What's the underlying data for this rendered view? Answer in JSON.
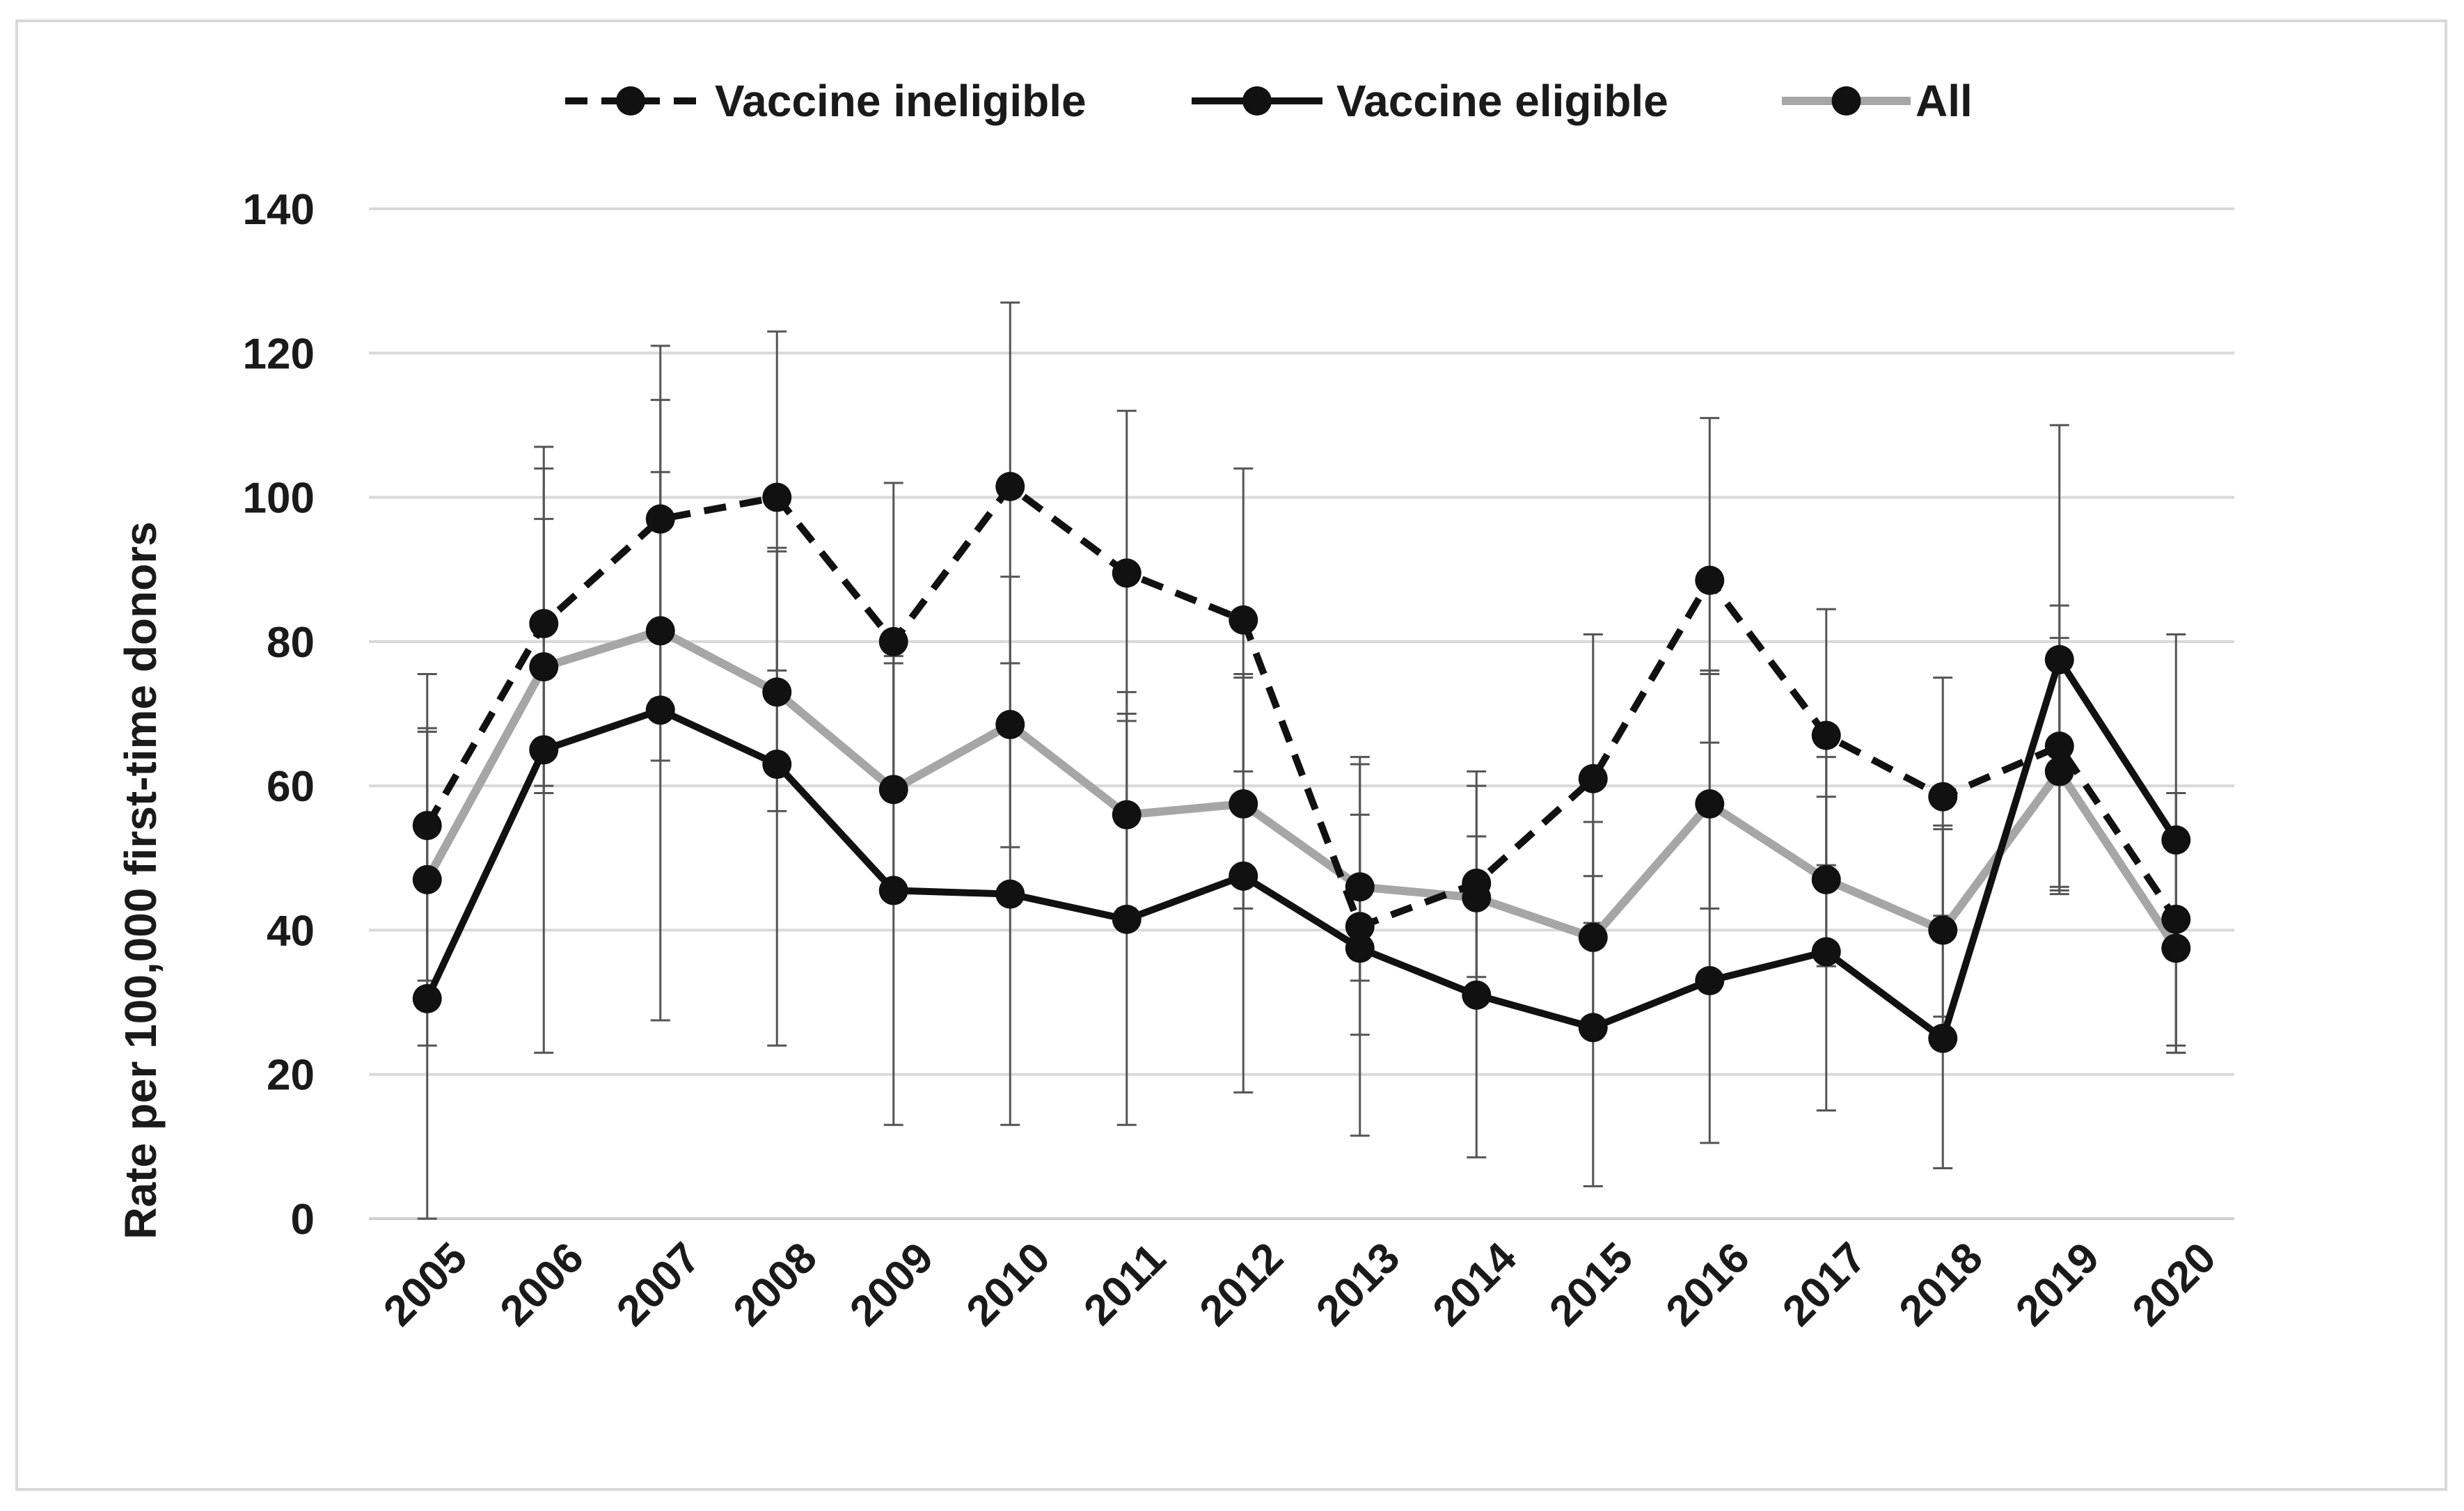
{
  "chart_data": {
    "type": "line",
    "title": "",
    "xlabel": "",
    "ylabel": "Rate per 100,000 first-time donors",
    "ylim": [
      0,
      140
    ],
    "yticks": [
      0,
      20,
      40,
      60,
      80,
      100,
      120,
      140
    ],
    "grid": true,
    "legend_position": "top-center",
    "categories": [
      "2005",
      "2006",
      "2007",
      "2008",
      "2009",
      "2010",
      "2011",
      "2012",
      "2013",
      "2014",
      "2015",
      "2016",
      "2017",
      "2018",
      "2019",
      "2020"
    ],
    "series": [
      {
        "name": "Vaccine ineligible",
        "style": "dashed",
        "color": "#111111",
        "values": [
          54.5,
          82.5,
          97.0,
          100.0,
          80.0,
          101.5,
          89.5,
          83.0,
          40.5,
          46.5,
          61.0,
          88.5,
          67.0,
          58.5,
          65.5,
          41.5
        ],
        "ci_low": [
          33,
          60,
          72,
          76,
          60,
          77,
          69,
          62,
          25.5,
          32,
          41,
          66,
          49,
          42,
          46,
          23
        ],
        "ci_high": [
          75.5,
          104,
          121,
          123,
          102,
          127,
          112,
          104,
          64,
          62,
          81,
          111,
          84.5,
          75,
          85,
          59
        ]
      },
      {
        "name": "Vaccine eligible",
        "style": "solid",
        "color": "#111111",
        "values": [
          30.5,
          65.0,
          70.5,
          63.0,
          45.5,
          45.0,
          41.5,
          47.5,
          37.5,
          31.0,
          26.5,
          33.0,
          37.0,
          25.0,
          77.5,
          52.5
        ],
        "ci_low": [
          0,
          23,
          27.5,
          24,
          13,
          13,
          13,
          17.5,
          11.5,
          8.5,
          4.5,
          10.5,
          15,
          7,
          45,
          24
        ],
        "ci_high": [
          68,
          107,
          113.5,
          93,
          78,
          77,
          70,
          75.5,
          63,
          60,
          55,
          76,
          64,
          54,
          110,
          81
        ]
      },
      {
        "name": "All",
        "style": "solid",
        "color": "#a6a6a6",
        "values": [
          47.0,
          76.5,
          81.5,
          73.0,
          59.5,
          68.5,
          56.0,
          57.5,
          46.0,
          44.5,
          39.0,
          57.5,
          47.0,
          40.0,
          62.0,
          37.5
        ],
        "ci_low": [
          24,
          59,
          63.5,
          56.5,
          45,
          51.5,
          43,
          43,
          33,
          33.5,
          27,
          43,
          35,
          28,
          45.5,
          23
        ],
        "ci_high": [
          67.5,
          97,
          103.5,
          92.5,
          77,
          89,
          73,
          75,
          56,
          53,
          47.5,
          75.5,
          58.5,
          54.5,
          80.5,
          59
        ]
      }
    ]
  }
}
